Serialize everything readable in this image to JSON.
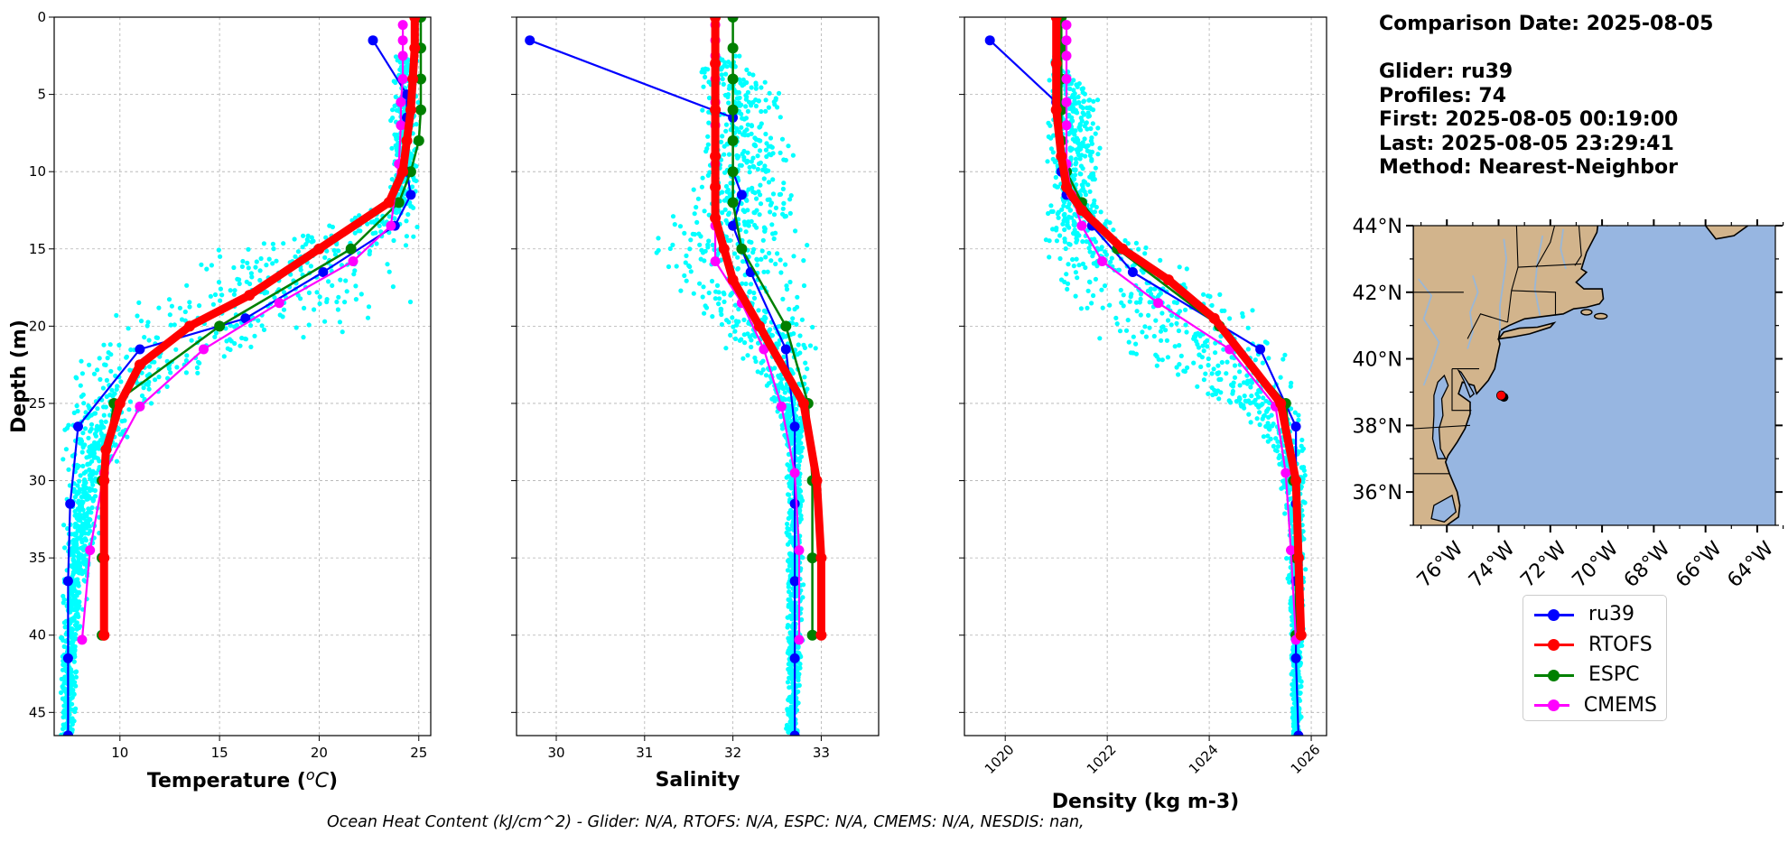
{
  "info": {
    "comparison_date": "Comparison Date: 2025-08-05",
    "glider": "Glider: ru39",
    "profiles": "Profiles: 74",
    "first": "First: 2025-08-05 00:19:00",
    "last": "Last: 2025-08-05 23:29:41",
    "method": "Method: Nearest-Neighbor"
  },
  "footer": "Ocean Heat Content (kJ/cm^2) - Glider: N/A,  RTOFS: N/A,  ESPC: N/A,  CMEMS: N/A,  NESDIS: nan,",
  "colors": {
    "scatter": "#00ffff",
    "ru39": "#0000ff",
    "RTOFS": "#ff0000",
    "ESPC": "#008000",
    "CMEMS": "#ff00ff",
    "land": "#d2b48c",
    "ocean": "#97b6e1",
    "grid": "#b0b0b0"
  },
  "legend": [
    "ru39",
    "RTOFS",
    "ESPC",
    "CMEMS"
  ],
  "chart_data": [
    {
      "type": "line",
      "title": "",
      "xlabel": "Temperature (°C)",
      "ylabel": "Depth (m)",
      "xlim": [
        6.7,
        25.6
      ],
      "ylim": [
        46.5,
        0
      ],
      "xticks": [
        10,
        15,
        20,
        25
      ],
      "yticks": [
        0,
        5,
        10,
        15,
        20,
        25,
        30,
        35,
        40,
        45
      ],
      "grid": true,
      "glider_scatter_band": {
        "depth": [
          3,
          5,
          8,
          10,
          12,
          14,
          15,
          17,
          19,
          20,
          21,
          22,
          24,
          26,
          30,
          40,
          46
        ],
        "min": [
          23.7,
          23.6,
          23.5,
          23.5,
          23.3,
          19.0,
          15.0,
          11.5,
          10.0,
          8.5,
          8.0,
          7.5,
          7.3,
          7.2,
          7.1,
          7.0,
          7.0
        ],
        "max": [
          25.0,
          25.0,
          25.0,
          25.0,
          25.0,
          25.0,
          25.0,
          24.9,
          24.7,
          23.0,
          19.0,
          16.0,
          13.0,
          11.0,
          9.5,
          8.0,
          7.8
        ]
      },
      "series": [
        {
          "name": "ru39",
          "x": [
            22.7,
            24.4,
            24.4,
            24.4,
            24.4,
            24.6,
            23.8,
            20.2,
            16.3,
            11.0,
            7.9,
            7.5,
            7.4,
            7.4,
            7.4,
            7.4
          ],
          "y": [
            1.5,
            5,
            6.5,
            8,
            10,
            11.5,
            13.5,
            16.5,
            19.5,
            21.5,
            26.5,
            31.5,
            36.5,
            41.5,
            46.5,
            46.5
          ]
        },
        {
          "name": "RTOFS",
          "x": [
            24.8,
            24.8,
            24.7,
            24.6,
            24.4,
            24.2,
            23.5,
            20.0,
            16.5,
            13.5,
            11.0,
            10.0,
            9.3,
            9.2,
            9.2,
            9.2,
            9.2
          ],
          "y": [
            0,
            2,
            4,
            6,
            8,
            10,
            12,
            15,
            18,
            20,
            22.5,
            25,
            28,
            30,
            35,
            40,
            40
          ]
        },
        {
          "name": "ESPC",
          "x": [
            25.1,
            25.1,
            25.1,
            25.1,
            25.0,
            24.6,
            24.0,
            21.6,
            15.0,
            9.7,
            9.1,
            9.1,
            9.1
          ],
          "y": [
            0,
            2,
            4,
            6,
            8,
            10,
            12,
            15,
            20,
            25,
            30,
            35,
            40
          ]
        },
        {
          "name": "CMEMS",
          "x": [
            24.2,
            24.2,
            24.2,
            24.2,
            24.1,
            24.1,
            24.0,
            23.6,
            21.7,
            18.0,
            14.2,
            11.0,
            9.2,
            8.5,
            8.1
          ],
          "y": [
            0.5,
            1.5,
            2.5,
            4,
            5.5,
            7,
            9.5,
            13.5,
            15.8,
            18.5,
            21.5,
            25.2,
            29.5,
            34.5,
            40.3
          ]
        }
      ]
    },
    {
      "type": "line",
      "title": "",
      "xlabel": "Salinity",
      "ylabel": "",
      "xlim": [
        29.55,
        33.65
      ],
      "ylim": [
        46.5,
        0
      ],
      "xticks": [
        30,
        31,
        32,
        33
      ],
      "grid": true,
      "glider_scatter_band": {
        "depth": [
          3,
          5,
          8,
          10,
          12,
          14,
          16,
          18,
          20,
          22,
          24,
          26,
          28,
          30,
          35,
          40,
          46
        ],
        "min": [
          31.6,
          31.5,
          31.6,
          31.6,
          31.5,
          30.9,
          31.0,
          31.3,
          31.7,
          32.0,
          32.3,
          32.5,
          32.6,
          32.6,
          32.6,
          32.6,
          32.6
        ],
        "max": [
          32.1,
          32.7,
          32.7,
          32.7,
          32.8,
          32.9,
          32.9,
          32.9,
          33.0,
          33.0,
          32.9,
          32.8,
          32.8,
          32.8,
          32.8,
          32.8,
          32.75
        ]
      },
      "series": [
        {
          "name": "ru39",
          "x": [
            29.7,
            32.0,
            32.0,
            32.0,
            32.1,
            32.0,
            32.1,
            32.2,
            32.6,
            32.7,
            32.7,
            32.7,
            32.7,
            32.7
          ],
          "y": [
            1.5,
            6.5,
            8,
            10,
            11.5,
            13.5,
            15,
            16.5,
            21.5,
            26.5,
            31.5,
            36.5,
            41.5,
            46.5
          ]
        },
        {
          "name": "RTOFS",
          "x": [
            31.8,
            31.8,
            31.8,
            31.8,
            31.8,
            31.8,
            31.9,
            32.0,
            32.3,
            32.8,
            32.95,
            33.0,
            33.0
          ],
          "y": [
            0,
            3,
            6,
            9,
            11,
            13,
            15,
            17,
            20,
            25,
            30,
            35,
            40
          ]
        },
        {
          "name": "ESPC",
          "x": [
            32.0,
            32.0,
            32.0,
            32.0,
            32.0,
            32.0,
            32.0,
            32.1,
            32.6,
            32.85,
            32.9,
            32.9,
            32.9
          ],
          "y": [
            0,
            2,
            4,
            6,
            8,
            10,
            12,
            15,
            20,
            25,
            30,
            35,
            40
          ]
        },
        {
          "name": "CMEMS",
          "x": [
            31.8,
            31.8,
            31.8,
            31.8,
            31.8,
            31.8,
            31.8,
            31.8,
            31.8,
            32.1,
            32.35,
            32.55,
            32.7,
            32.75,
            32.75
          ],
          "y": [
            0.5,
            1.5,
            2.5,
            4,
            5.5,
            7,
            9.5,
            13.5,
            15.8,
            18.5,
            21.5,
            25.2,
            29.5,
            34.5,
            40.3
          ]
        }
      ]
    },
    {
      "type": "line",
      "title": "",
      "xlabel": "Density (kg m-3)",
      "ylabel": "",
      "xlim": [
        1019.2,
        1026.3
      ],
      "ylim": [
        46.5,
        0
      ],
      "xticks": [
        1020,
        1022,
        1024,
        1026
      ],
      "grid": true,
      "glider_scatter_band": {
        "depth": [
          3,
          5,
          8,
          10,
          12,
          14,
          16,
          18,
          20,
          22,
          24,
          26,
          28,
          30,
          35,
          40,
          46
        ],
        "min": [
          1020.9,
          1020.8,
          1020.8,
          1020.8,
          1020.8,
          1020.6,
          1020.7,
          1021.0,
          1021.5,
          1022.3,
          1023.5,
          1024.6,
          1025.2,
          1025.4,
          1025.5,
          1025.6,
          1025.6
        ],
        "max": [
          1021.0,
          1021.9,
          1021.9,
          1021.9,
          1022.0,
          1022.5,
          1023.6,
          1024.6,
          1025.4,
          1025.7,
          1025.8,
          1025.9,
          1025.9,
          1025.9,
          1025.9,
          1025.85,
          1025.8
        ]
      },
      "series": [
        {
          "name": "ru39",
          "x": [
            1019.7,
            1021.0,
            1021.1,
            1021.1,
            1021.2,
            1021.7,
            1022.5,
            1025.0,
            1025.7,
            1025.7,
            1025.7,
            1025.7,
            1025.75
          ],
          "y": [
            1.5,
            5.5,
            8,
            10,
            11.5,
            13.5,
            16.5,
            21.5,
            26.5,
            31.5,
            36.5,
            41.5,
            46.5
          ]
        },
        {
          "name": "RTOFS",
          "x": [
            1021.0,
            1021.0,
            1021.0,
            1021.1,
            1021.2,
            1021.5,
            1022.3,
            1023.2,
            1024.1,
            1025.4,
            1025.7,
            1025.75,
            1025.8
          ],
          "y": [
            0,
            3,
            6,
            9,
            11,
            12.5,
            15,
            17,
            19.5,
            25,
            30,
            35,
            40
          ]
        },
        {
          "name": "ESPC",
          "x": [
            1021.1,
            1021.1,
            1021.1,
            1021.1,
            1021.1,
            1021.2,
            1021.5,
            1022.2,
            1024.2,
            1025.5,
            1025.65,
            1025.7,
            1025.7
          ],
          "y": [
            0,
            2,
            4,
            6,
            8,
            10,
            12,
            15,
            20,
            25,
            30,
            35,
            40
          ]
        },
        {
          "name": "CMEMS",
          "x": [
            1021.2,
            1021.2,
            1021.2,
            1021.2,
            1021.2,
            1021.2,
            1021.2,
            1021.3,
            1021.5,
            1021.9,
            1023.0,
            1024.4,
            1025.3,
            1025.5,
            1025.6,
            1025.7
          ],
          "y": [
            0.5,
            1.5,
            2.5,
            4,
            5.5,
            7,
            9.5,
            11.5,
            13.5,
            15.8,
            18.5,
            21.5,
            25.2,
            29.5,
            34.5,
            40.3
          ]
        }
      ]
    },
    {
      "type": "map",
      "lon_range": [
        -77.3,
        -63.3
      ],
      "lat_range": [
        35,
        44
      ],
      "xticks": [
        "76°W",
        "74°W",
        "72°W",
        "70°W",
        "68°W",
        "66°W",
        "64°W"
      ],
      "yticks": [
        "36°N",
        "38°N",
        "40°N",
        "42°N",
        "44°N"
      ],
      "glider_location": {
        "lon": -73.9,
        "lat": 38.9
      }
    }
  ]
}
